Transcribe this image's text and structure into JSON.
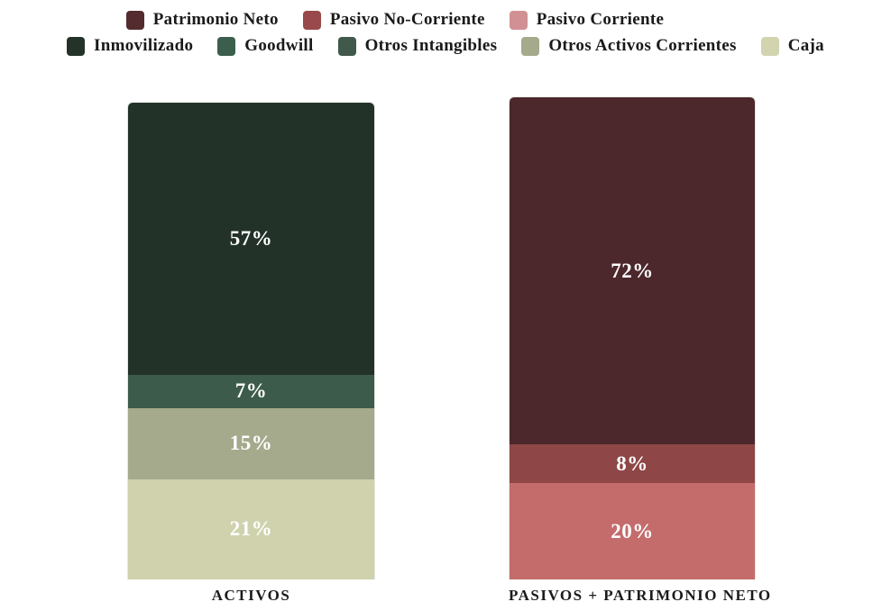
{
  "page": {
    "background": "#ffffff",
    "text_color": "#1a1a1a"
  },
  "legend": {
    "position": "top",
    "rows": [
      {
        "items": [
          {
            "label": "Patrimonio Neto",
            "color": "#542b2f"
          },
          {
            "label": "Pasivo No-Corriente",
            "color": "#99494b"
          },
          {
            "label": "Pasivo Corriente",
            "color": "#d19094"
          }
        ]
      },
      {
        "items": [
          {
            "label": "Inmovilizado",
            "color": "#243329"
          },
          {
            "label": "Goodwill",
            "color": "#3b5f4c"
          },
          {
            "label": "Otros Intangibles",
            "color": "#40594b"
          },
          {
            "label": "Otros Activos Corrientes",
            "color": "#a4aa8b"
          },
          {
            "label": "Caja",
            "color": "#d1d4af"
          }
        ]
      }
    ]
  },
  "chart_data": {
    "type": "bar",
    "subtype": "100-percent-stacked-column",
    "orientation": "vertical",
    "title": "",
    "xlabel": "",
    "ylabel": "",
    "grid": false,
    "axes_visible": false,
    "legend_position": "top",
    "value_label_style": "white bold serif percentage centered inside each segment",
    "categories": [
      "ACTIVOS",
      "PASIVOS + PATRIMONIO NETO"
    ],
    "bars": [
      {
        "category": "ACTIVOS",
        "total_pct": 100,
        "segments_top_to_bottom": [
          {
            "name": "Inmovilizado",
            "value_pct": 57,
            "label": "57%",
            "color": "#233229",
            "label_color": "#ffffff"
          },
          {
            "name": "Otros Intangibles",
            "value_pct": 7,
            "label": "7%",
            "color": "#3d5b4a",
            "label_color": "#ffffff"
          },
          {
            "name": "Otros Activos Corrientes",
            "value_pct": 15,
            "label": "15%",
            "color": "#a4aa8b",
            "label_color": "#ffffff"
          },
          {
            "name": "Caja",
            "value_pct": 21,
            "label": "21%",
            "color": "#cfd2ad",
            "label_color": "#ffffff"
          }
        ]
      },
      {
        "category": "PASIVOS + PATRIMONIO NETO",
        "total_pct": 100,
        "segments_top_to_bottom": [
          {
            "name": "Patrimonio Neto",
            "value_pct": 72,
            "label": "72%",
            "color": "#4c272b",
            "label_color": "#ffffff"
          },
          {
            "name": "Pasivo No-Corriente",
            "value_pct": 8,
            "label": "8%",
            "color": "#8e4646",
            "label_color": "#ffffff"
          },
          {
            "name": "Pasivo Corriente",
            "value_pct": 20,
            "label": "20%",
            "color": "#c46c6c",
            "label_color": "#ffffff"
          }
        ]
      }
    ]
  }
}
